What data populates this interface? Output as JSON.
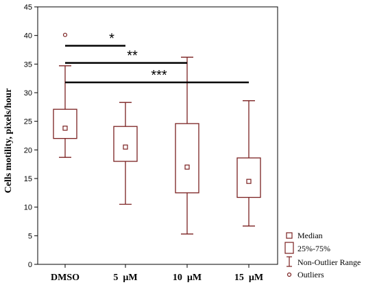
{
  "colors": {
    "box": "#7a1f1f",
    "axis": "#000000",
    "bracket": "#000000"
  },
  "chart_data": {
    "type": "box",
    "ylabel": "Cells motility, pixels/hour",
    "ylim": [
      0,
      45
    ],
    "yticks": [
      "0",
      "5",
      "10",
      "15",
      "20",
      "25",
      "30",
      "35",
      "40",
      "45"
    ],
    "categories": [
      "DMSO",
      "5  µM",
      "10  µM",
      "15  µM"
    ],
    "boxes": [
      {
        "category": "DMSO",
        "median": 23.8,
        "q1": 22.0,
        "q3": 27.1,
        "whisker_low": 18.7,
        "whisker_high": 34.7,
        "outliers": [
          40.1
        ]
      },
      {
        "category": "5  µM",
        "median": 20.5,
        "q1": 18.0,
        "q3": 24.1,
        "whisker_low": 10.5,
        "whisker_high": 28.3,
        "outliers": []
      },
      {
        "category": "10  µM",
        "median": 17.0,
        "q1": 12.5,
        "q3": 24.6,
        "whisker_low": 5.3,
        "whisker_high": 36.2,
        "outliers": []
      },
      {
        "category": "15  µM",
        "median": 14.5,
        "q1": 11.7,
        "q3": 18.6,
        "whisker_low": 6.7,
        "whisker_high": 28.6,
        "outliers": []
      }
    ],
    "significance": [
      {
        "label": "*",
        "from": "DMSO",
        "to": "5  µM",
        "y": 38.2
      },
      {
        "label": "**",
        "from": "DMSO",
        "to": "10  µM",
        "y": 35.2
      },
      {
        "label": "***",
        "from": "DMSO",
        "to": "15  µM",
        "y": 31.8
      }
    ],
    "legend": [
      "Median",
      "25%-75%",
      "Non-Outlier Range",
      "Outliers"
    ],
    "grid": false
  }
}
